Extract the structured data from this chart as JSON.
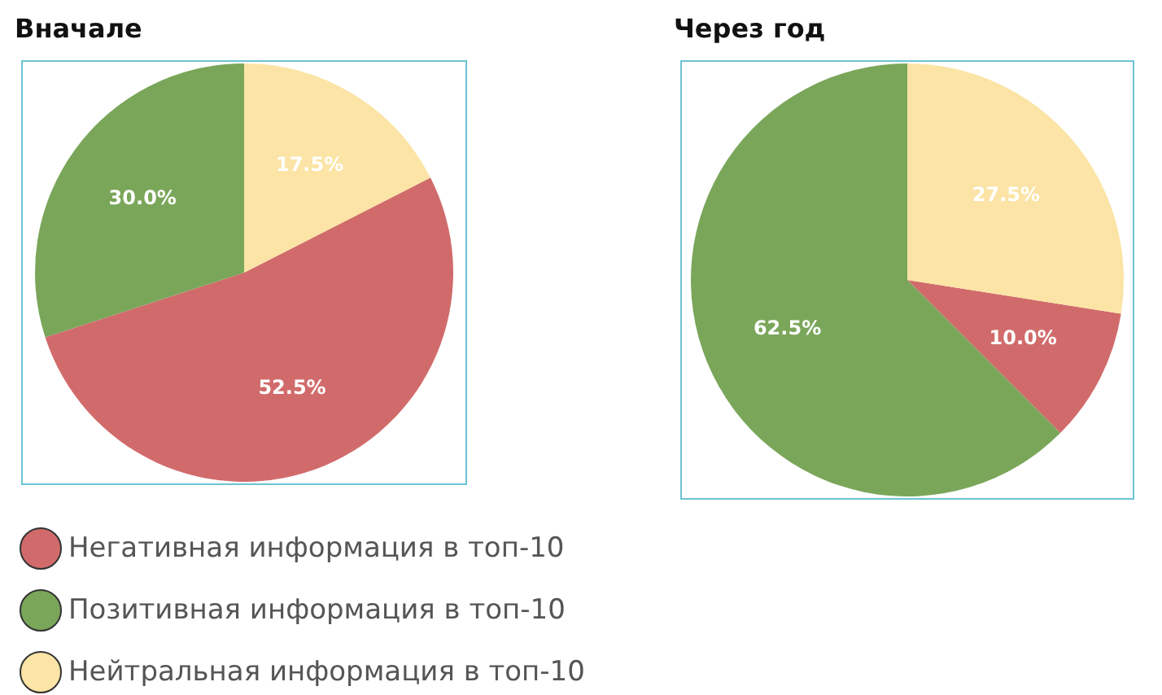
{
  "chart_data": [
    {
      "type": "pie",
      "title": "Вначале",
      "categories": [
        "Негативная информация в топ-10",
        "Позитивная информация в топ-10",
        "Нейтральная информация в топ-10"
      ],
      "values": [
        52.5,
        30.0,
        17.5
      ],
      "colors": [
        "#d16b6b",
        "#7aa65a",
        "#fbe4a5"
      ],
      "value_labels": [
        "52.5%",
        "30.0%",
        "17.5%"
      ],
      "legend": "bottom"
    },
    {
      "type": "pie",
      "title": "Через год",
      "categories": [
        null,
        null,
        null
      ],
      "values": [
        10.0,
        62.5,
        27.5
      ],
      "colors": [
        "#d16b6b",
        "#7aa65a",
        "#fbe4a5"
      ],
      "value_labels": [
        "10.0%",
        "62.5%",
        "27.5%"
      ]
    }
  ]
}
